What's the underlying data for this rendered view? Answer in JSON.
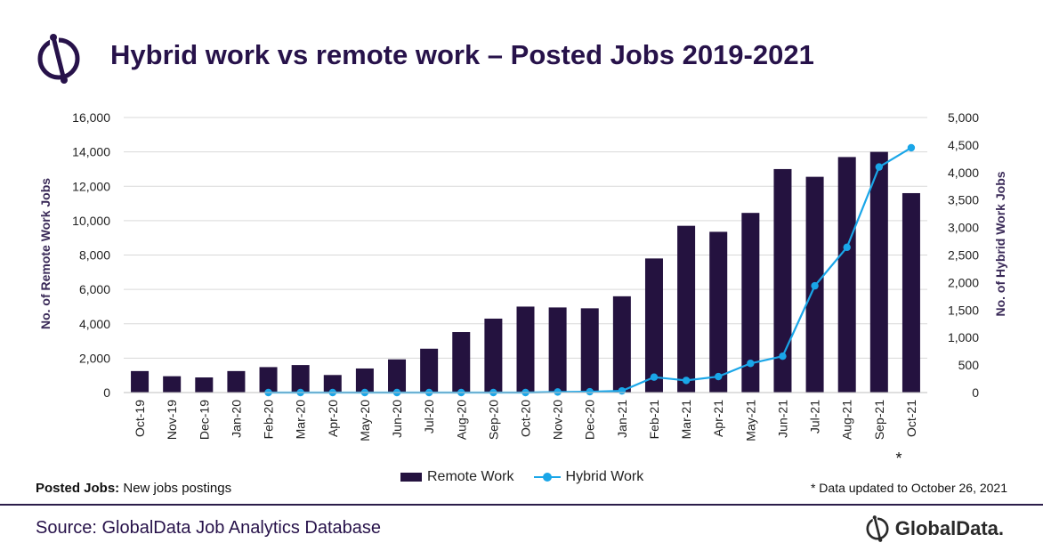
{
  "title": "Hybrid work vs remote work – Posted Jobs 2019-2021",
  "chart_data": {
    "type": "bar",
    "categories": [
      "Oct-19",
      "Nov-19",
      "Dec-19",
      "Jan-20",
      "Feb-20",
      "Mar-20",
      "Apr-20",
      "May-20",
      "Jun-20",
      "Jul-20",
      "Aug-20",
      "Sep-20",
      "Oct-20",
      "Nov-20",
      "Dec-20",
      "Jan-21",
      "Feb-21",
      "Mar-21",
      "Apr-21",
      "May-21",
      "Jun-21",
      "Jul-21",
      "Aug-21",
      "Sep-21",
      "Oct-21"
    ],
    "series": [
      {
        "name": "Remote Work",
        "type": "bar",
        "axis": "left",
        "color": "#24123f",
        "values": [
          1250,
          950,
          880,
          1250,
          1480,
          1600,
          1020,
          1400,
          1930,
          2550,
          3520,
          4300,
          5000,
          4950,
          4900,
          5600,
          7800,
          9700,
          9350,
          10450,
          13000,
          12550,
          13700,
          14000,
          11600
        ]
      },
      {
        "name": "Hybrid Work",
        "type": "line",
        "axis": "right",
        "color": "#1aa6e8",
        "values": [
          null,
          null,
          null,
          null,
          0,
          0,
          0,
          0,
          0,
          0,
          0,
          0,
          0,
          10,
          15,
          30,
          280,
          220,
          290,
          530,
          660,
          1940,
          2640,
          4100,
          4450
        ]
      }
    ],
    "ylabel": "No. of Remote Work Jobs",
    "ylabel_right": "No. of Hybrid Work Jobs",
    "ylim": [
      0,
      16000
    ],
    "ylim_right": [
      0,
      5000
    ],
    "yticks": [
      "0",
      "2,000",
      "4,000",
      "6,000",
      "8,000",
      "10,000",
      "12,000",
      "14,000",
      "16,000"
    ],
    "yticks_right": [
      "0",
      "500",
      "1,000",
      "1,500",
      "2,000",
      "2,500",
      "3,000",
      "3,500",
      "4,000",
      "4,500",
      "5,000"
    ],
    "grid": true,
    "legend_position": "bottom",
    "annotation": "*"
  },
  "legend": {
    "remote": "Remote Work",
    "hybrid": "Hybrid Work"
  },
  "footer": {
    "posted_label": "Posted Jobs:",
    "posted_text": " New jobs postings",
    "note": "* Data updated to October 26, 2021",
    "source": "Source: GlobalData Job Analytics Database",
    "brand": "GlobalData."
  }
}
